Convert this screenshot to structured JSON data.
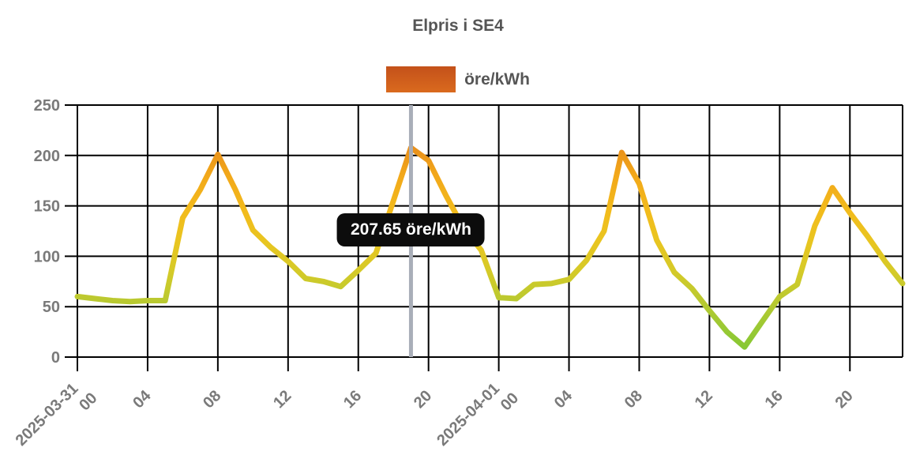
{
  "chart": {
    "title": "Elpris i SE4",
    "legend_label": "öre/kWh"
  },
  "chart_data": {
    "type": "line",
    "title": "Elpris i SE4",
    "unit": "öre/kWh",
    "legend_position": "top",
    "grid": true,
    "ylim": [
      0,
      250
    ],
    "y_ticks": [
      0,
      50,
      100,
      150,
      200,
      250
    ],
    "x_hours_total": 47,
    "x_ticks": [
      {
        "hour": 0,
        "label": "00",
        "date": "2025-03-31"
      },
      {
        "hour": 4,
        "label": "04"
      },
      {
        "hour": 8,
        "label": "08"
      },
      {
        "hour": 12,
        "label": "12"
      },
      {
        "hour": 16,
        "label": "16"
      },
      {
        "hour": 20,
        "label": "20"
      },
      {
        "hour": 24,
        "label": "00",
        "date": "2025-04-01"
      },
      {
        "hour": 28,
        "label": "04"
      },
      {
        "hour": 32,
        "label": "08"
      },
      {
        "hour": 36,
        "label": "12"
      },
      {
        "hour": 40,
        "label": "16"
      },
      {
        "hour": 44,
        "label": "20"
      },
      {
        "hour": 47
      }
    ],
    "series": [
      {
        "name": "öre/kWh",
        "values": [
          60,
          58,
          56,
          55,
          56,
          56,
          138,
          166,
          201,
          166,
          126,
          109,
          95,
          78,
          75,
          70,
          86,
          103,
          155,
          207.65,
          195,
          160,
          128,
          106,
          59,
          58,
          72,
          73,
          77,
          96,
          125,
          203,
          172,
          116,
          84,
          68,
          46,
          25,
          10,
          35,
          60,
          72,
          130,
          168,
          143,
          120,
          95,
          73
        ]
      }
    ],
    "cursor": {
      "x_hour": 19,
      "value": 207.65,
      "label": "207.65 öre/kWh"
    },
    "line_gradient": [
      {
        "at_value": 0,
        "color": "#7ec832"
      },
      {
        "at_value": 30,
        "color": "#9bc934"
      },
      {
        "at_value": 55,
        "color": "#b9c930"
      },
      {
        "at_value": 85,
        "color": "#d5ca28"
      },
      {
        "at_value": 115,
        "color": "#e9c520"
      },
      {
        "at_value": 145,
        "color": "#f2bb1c"
      },
      {
        "at_value": 180,
        "color": "#f2a81a"
      },
      {
        "at_value": 210,
        "color": "#e88e1b"
      },
      {
        "at_value": 250,
        "color": "#d2691e"
      }
    ],
    "colors": {
      "grid": "#000000",
      "tick_text": "#7a7a7a",
      "title_text": "#555555",
      "cursor": "#a9aeb8",
      "tooltip_bg": "#0c0c0c",
      "tooltip_text": "#ffffff",
      "legend_swatch_top": "#c4511a",
      "legend_swatch_bottom": "#da6a1e"
    }
  }
}
